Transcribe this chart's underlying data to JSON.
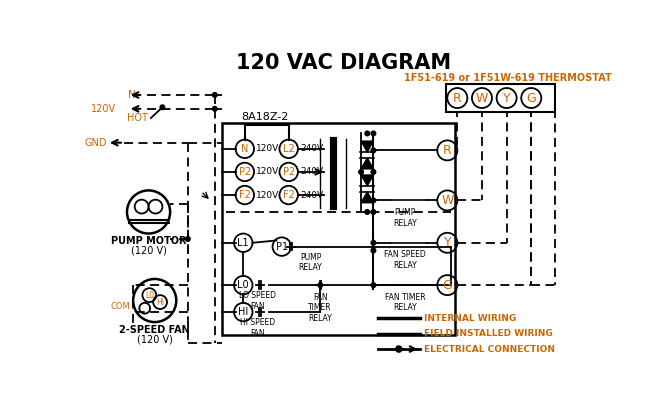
{
  "title": "120 VAC DIAGRAM",
  "thermostat_label": "1F51-619 or 1F51W-619 THERMOSTAT",
  "controller_label": "8A18Z-2",
  "thermostat_terminals": [
    "R",
    "W",
    "Y",
    "G"
  ],
  "left_terminals_120": [
    "N",
    "P2",
    "F2"
  ],
  "left_terminals_240": [
    "L2",
    "P2",
    "F2"
  ],
  "voltages_120": [
    "120V",
    "120V",
    "120V"
  ],
  "voltages_240": [
    "240V",
    "240V",
    "240V"
  ],
  "relay_labels": [
    "R",
    "W",
    "Y",
    "G"
  ],
  "relay_desc": [
    "",
    "PUMP\nRELAY",
    "FAN SPEED\nRELAY",
    "FAN TIMER\nRELAY"
  ],
  "legend_items": [
    "INTERNAL WIRING",
    "FIELD INSTALLED WIRING",
    "ELECTRICAL CONNECTION"
  ],
  "motor_label1": "PUMP MOTOR",
  "motor_label2": "(120 V)",
  "fan_label1": "2-SPEED FAN",
  "fan_label2": "(120 V)",
  "lo_speed": "LO SPEED\nFAN",
  "hi_speed": "HI SPEED\nFAN",
  "fan_timer": "FAN\nTIMER\nRELAY",
  "pump_relay_bottom": "PUMP\nRELAY",
  "bg_color": "#ffffff",
  "lc": "#000000",
  "oc": "#cc6600"
}
